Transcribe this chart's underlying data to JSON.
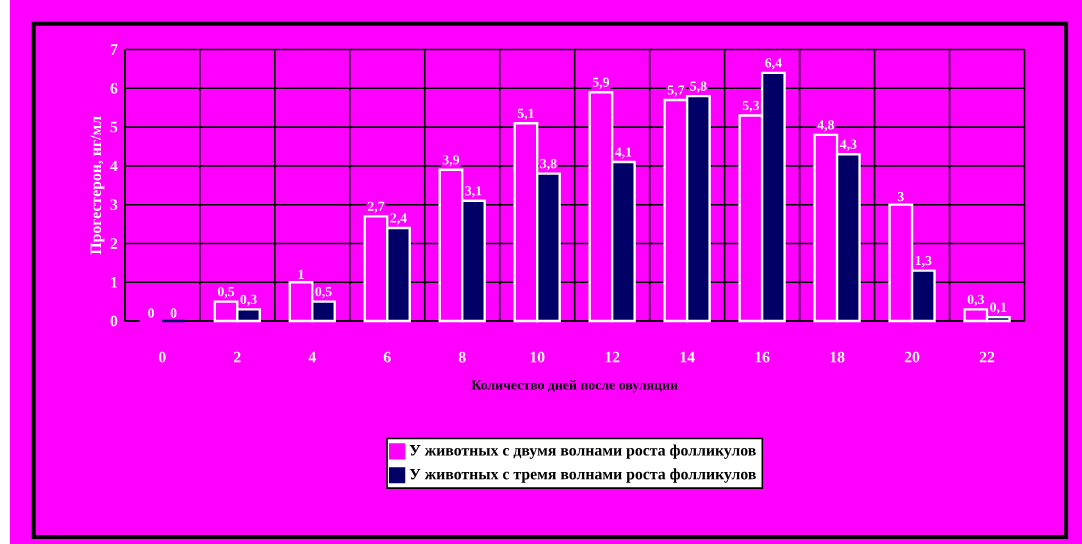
{
  "chart_data": {
    "type": "bar",
    "xlabel": "Количество дней после овуляции",
    "ylabel": "Прогестерон, нг/мл",
    "categories": [
      "0",
      "2",
      "4",
      "6",
      "8",
      "10",
      "12",
      "14",
      "16",
      "18",
      "20",
      "22"
    ],
    "series": [
      {
        "name": "У животных с двумя волнами роста фолликулов",
        "color": "#ff00ff",
        "values": [
          0,
          0.5,
          1,
          2.7,
          3.9,
          5.1,
          5.9,
          5.7,
          5.3,
          4.8,
          3,
          0.3
        ],
        "value_labels": [
          "0",
          "0,5",
          "1",
          "2,7",
          "3,9",
          "5,1",
          "5,9",
          "5,7",
          "5,3",
          "4,8",
          "3",
          "0,3"
        ]
      },
      {
        "name": "У животных с тремя волнами роста фолликулов",
        "color": "#000066",
        "values": [
          0,
          0.3,
          0.5,
          2.4,
          3.1,
          3.8,
          4.1,
          5.8,
          6.4,
          4.3,
          1.3,
          0.1
        ],
        "value_labels": [
          "0",
          "0,3",
          "0,5",
          "2,4",
          "3,1",
          "3,8",
          "4,1",
          "5,8",
          "6,4",
          "4,3",
          "1,3",
          "0,1"
        ]
      }
    ],
    "ylim": [
      0,
      7
    ],
    "yticks": [
      0,
      1,
      2,
      3,
      4,
      5,
      6,
      7
    ],
    "grid": true,
    "legend": "bottom"
  }
}
